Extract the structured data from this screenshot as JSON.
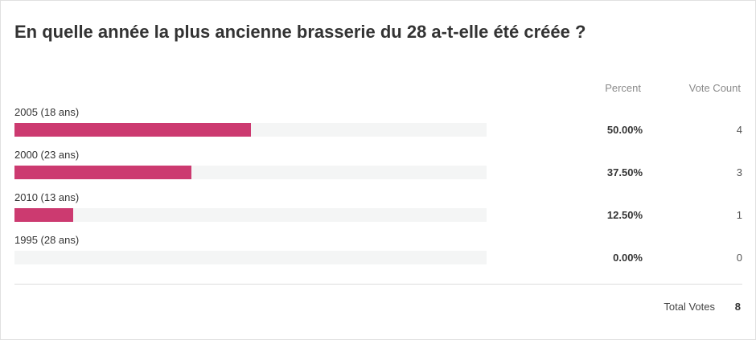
{
  "poll": {
    "question": "En quelle année la plus ancienne brasserie du 28 a-t-elle été créée ?",
    "headers": {
      "percent": "Percent",
      "vote_count": "Vote Count"
    },
    "options": [
      {
        "label": "2005 (18 ans)",
        "percent": "50.00%",
        "fraction": 0.5,
        "votes": "4"
      },
      {
        "label": "2000 (23 ans)",
        "percent": "37.50%",
        "fraction": 0.375,
        "votes": "3"
      },
      {
        "label": "2010 (13 ans)",
        "percent": "12.50%",
        "fraction": 0.125,
        "votes": "1"
      },
      {
        "label": "1995 (28 ans)",
        "percent": "0.00%",
        "fraction": 0.0,
        "votes": "0"
      }
    ],
    "total": {
      "label": "Total Votes",
      "value": "8"
    }
  },
  "colors": {
    "bar_fill": "#cc3a70",
    "bar_track": "#f4f5f5"
  }
}
